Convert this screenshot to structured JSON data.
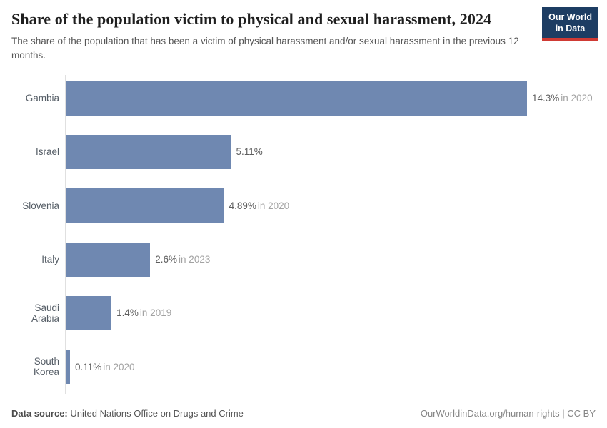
{
  "header": {
    "title": "Share of the population victim to physical and sexual harassment, 2024",
    "subtitle": "The share of the population that has been a victim of physical harassment and/or sexual harassment in the previous 12 months.",
    "logo": {
      "line1": "Our World",
      "line2": "in Data"
    }
  },
  "chart_data": {
    "type": "bar",
    "orientation": "horizontal",
    "categories": [
      "Gambia",
      "Israel",
      "Slovenia",
      "Italy",
      "Saudi Arabia",
      "South Korea"
    ],
    "values": [
      14.3,
      5.11,
      4.89,
      2.6,
      1.4,
      0.11
    ],
    "value_labels": [
      "14.3%",
      "5.11%",
      "4.89%",
      "2.6%",
      "1.4%",
      "0.11%"
    ],
    "year_labels": [
      "in 2020",
      "",
      "in 2020",
      "in 2023",
      "in 2019",
      "in 2020"
    ],
    "xlim": [
      0,
      14.3
    ],
    "grid": false,
    "legend": "none",
    "bar_color": "#6f88b1",
    "axis_color": "#e0e0e0",
    "logo_bg_color": "#1d3d63",
    "logo_accent_color": "#cf3a34"
  },
  "footer": {
    "source_label": "Data source:",
    "source_value": "United Nations Office on Drugs and Crime",
    "right_text": "OurWorldinData.org/human-rights | CC BY"
  }
}
